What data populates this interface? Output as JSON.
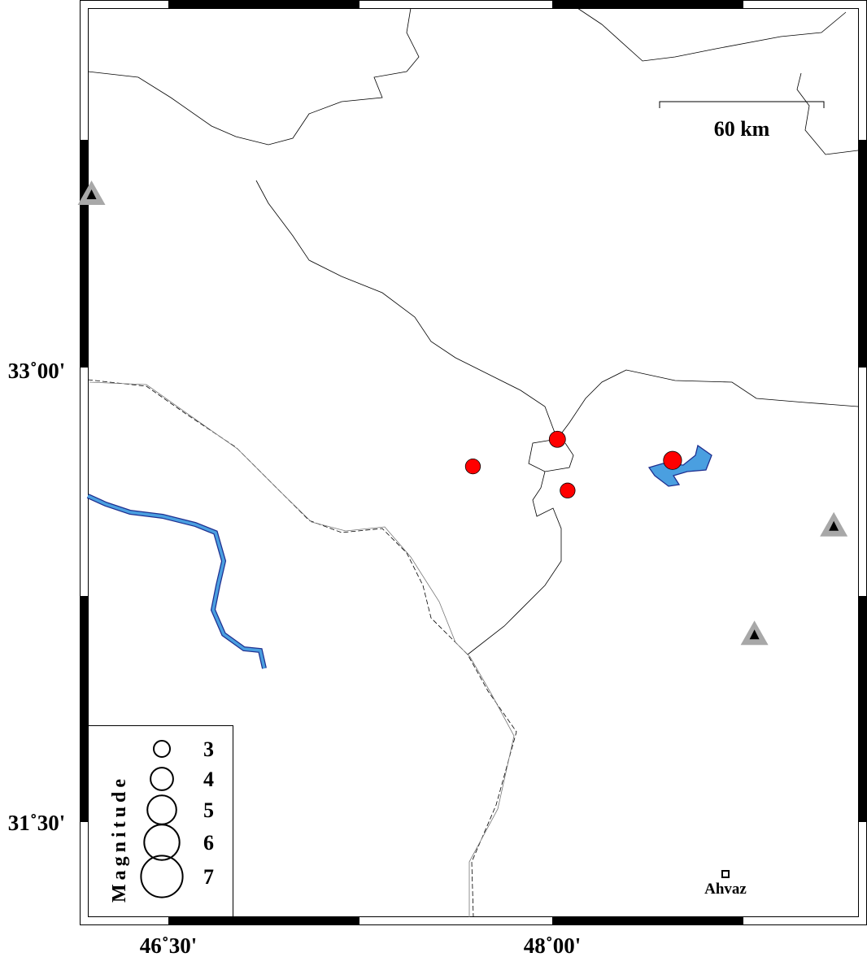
{
  "map": {
    "lon_range": [
      46.17,
      48.98
    ],
    "lat_range": [
      31.17,
      33.2
    ],
    "lon_ticks": [
      {
        "value": 46.5,
        "label": "46˚30'"
      },
      {
        "value": 48.0,
        "label": "48˚00'"
      }
    ],
    "lat_ticks": [
      {
        "value": 33.0,
        "label": "33˚00'"
      },
      {
        "value": 31.5,
        "label": "31˚30'"
      }
    ],
    "scale_bar": {
      "label": "60 km"
    },
    "city": {
      "name": "Ahvaz",
      "lon": 48.68,
      "lat": 31.32
    },
    "colors": {
      "event": "#ff0000",
      "water": "#4a9fe0",
      "water_outline": "#1f2f8f",
      "station": "#a8a8a8"
    },
    "events": [
      {
        "lon": 48.02,
        "lat": 32.77,
        "mag": 3.0
      },
      {
        "lon": 47.69,
        "lat": 32.68,
        "mag": 2.8
      },
      {
        "lon": 48.06,
        "lat": 32.6,
        "mag": 2.8
      },
      {
        "lon": 48.47,
        "lat": 32.7,
        "mag": 3.3
      }
    ],
    "stations": [
      {
        "lon": 46.2,
        "lat": 33.58
      },
      {
        "lon": 49.1,
        "lat": 32.48
      },
      {
        "lon": 48.79,
        "lat": 32.12
      }
    ]
  },
  "legend": {
    "title": "Magnitude",
    "items": [
      {
        "mag": 3,
        "label": "3"
      },
      {
        "mag": 4,
        "label": "4"
      },
      {
        "mag": 5,
        "label": "5"
      },
      {
        "mag": 6,
        "label": "6"
      },
      {
        "mag": 7,
        "label": "7"
      }
    ]
  }
}
